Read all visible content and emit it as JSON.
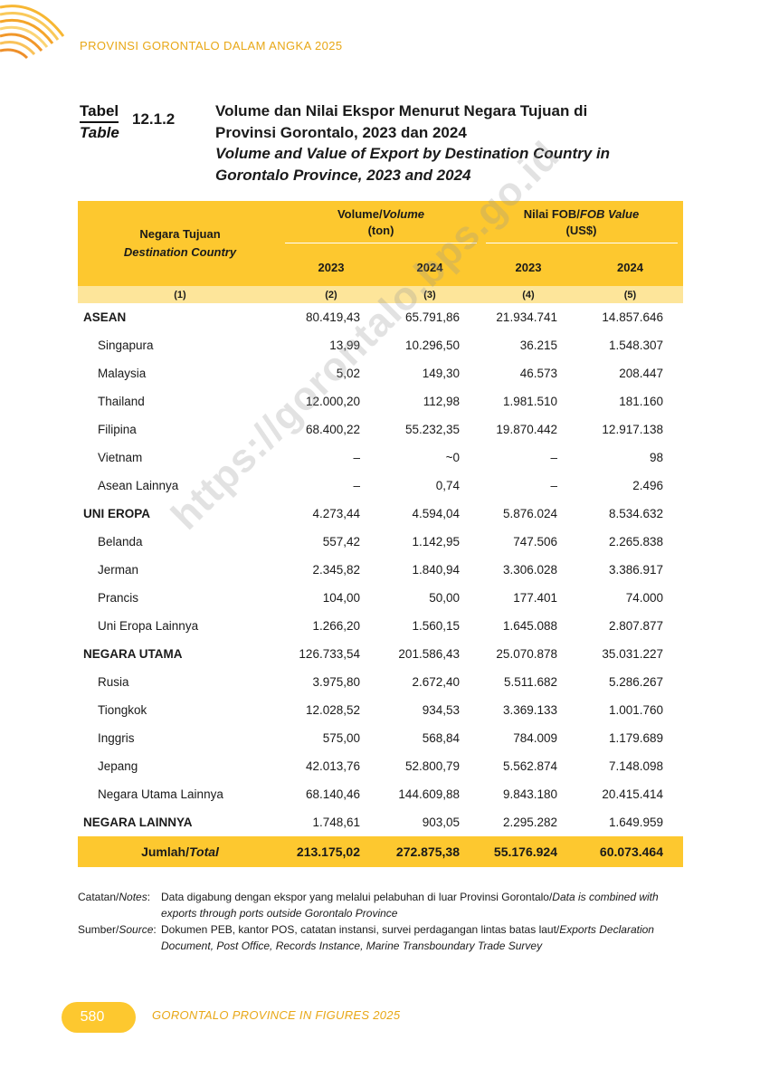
{
  "header": {
    "running_title": "PROVINSI GORONTALO DALAM ANGKA 2025"
  },
  "caption": {
    "tabel_label": "Tabel",
    "table_label": "Table",
    "number": "12.1.2",
    "title_id_1": "Volume dan Nilai Ekspor Menurut Negara Tujuan di",
    "title_id_2": "Provinsi Gorontalo, 2023 dan 2024",
    "title_en_1": "Volume and Value of Export by Destination Country in",
    "title_en_2": "Gorontalo Province, 2023 and 2024"
  },
  "table": {
    "col_country_id": "Negara Tujuan",
    "col_country_en": "Destination Country",
    "volume_id": "Volume/",
    "volume_en": "Volume",
    "volume_unit": "(ton)",
    "value_id": "Nilai FOB/",
    "value_en": "FOB Value",
    "value_unit": "(US$)",
    "year_a": "2023",
    "year_b": "2024",
    "col_numbers": [
      "(1)",
      "(2)",
      "(3)",
      "(4)",
      "(5)"
    ],
    "rows": [
      {
        "name": "ASEAN",
        "group": true,
        "vol_2023": "80.419,43",
        "vol_2024": "65.791,86",
        "fob_2023": "21.934.741",
        "fob_2024": "14.857.646"
      },
      {
        "name": "Singapura",
        "group": false,
        "vol_2023": "13,99",
        "vol_2024": "10.296,50",
        "fob_2023": "36.215",
        "fob_2024": "1.548.307"
      },
      {
        "name": "Malaysia",
        "group": false,
        "vol_2023": "5,02",
        "vol_2024": "149,30",
        "fob_2023": "46.573",
        "fob_2024": "208.447"
      },
      {
        "name": "Thailand",
        "group": false,
        "vol_2023": "12.000,20",
        "vol_2024": "112,98",
        "fob_2023": "1.981.510",
        "fob_2024": "181.160"
      },
      {
        "name": "Filipina",
        "group": false,
        "vol_2023": "68.400,22",
        "vol_2024": "55.232,35",
        "fob_2023": "19.870.442",
        "fob_2024": "12.917.138"
      },
      {
        "name": "Vietnam",
        "group": false,
        "vol_2023": "–",
        "vol_2024": "~0",
        "fob_2023": "–",
        "fob_2024": "98"
      },
      {
        "name": "Asean Lainnya",
        "group": false,
        "vol_2023": "–",
        "vol_2024": "0,74",
        "fob_2023": "–",
        "fob_2024": "2.496"
      },
      {
        "name": "UNI EROPA",
        "group": true,
        "vol_2023": "4.273,44",
        "vol_2024": "4.594,04",
        "fob_2023": "5.876.024",
        "fob_2024": "8.534.632"
      },
      {
        "name": "Belanda",
        "group": false,
        "vol_2023": "557,42",
        "vol_2024": "1.142,95",
        "fob_2023": "747.506",
        "fob_2024": "2.265.838"
      },
      {
        "name": "Jerman",
        "group": false,
        "vol_2023": "2.345,82",
        "vol_2024": "1.840,94",
        "fob_2023": "3.306.028",
        "fob_2024": "3.386.917"
      },
      {
        "name": "Prancis",
        "group": false,
        "vol_2023": "104,00",
        "vol_2024": "50,00",
        "fob_2023": "177.401",
        "fob_2024": "74.000"
      },
      {
        "name": "Uni Eropa Lainnya",
        "group": false,
        "vol_2023": "1.266,20",
        "vol_2024": "1.560,15",
        "fob_2023": "1.645.088",
        "fob_2024": "2.807.877"
      },
      {
        "name": "NEGARA UTAMA",
        "group": true,
        "vol_2023": "126.733,54",
        "vol_2024": "201.586,43",
        "fob_2023": "25.070.878",
        "fob_2024": "35.031.227"
      },
      {
        "name": "Rusia",
        "group": false,
        "vol_2023": "3.975,80",
        "vol_2024": "2.672,40",
        "fob_2023": "5.511.682",
        "fob_2024": "5.286.267"
      },
      {
        "name": "Tiongkok",
        "group": false,
        "vol_2023": "12.028,52",
        "vol_2024": "934,53",
        "fob_2023": "3.369.133",
        "fob_2024": "1.001.760"
      },
      {
        "name": "Inggris",
        "group": false,
        "vol_2023": "575,00",
        "vol_2024": "568,84",
        "fob_2023": "784.009",
        "fob_2024": "1.179.689"
      },
      {
        "name": "Jepang",
        "group": false,
        "vol_2023": "42.013,76",
        "vol_2024": "52.800,79",
        "fob_2023": "5.562.874",
        "fob_2024": "7.148.098"
      },
      {
        "name": "Negara Utama Lainnya",
        "group": false,
        "vol_2023": "68.140,46",
        "vol_2024": "144.609,88",
        "fob_2023": "9.843.180",
        "fob_2024": "20.415.414"
      },
      {
        "name": "NEGARA LAINNYA",
        "group": true,
        "vol_2023": "1.748,61",
        "vol_2024": "903,05",
        "fob_2023": "2.295.282",
        "fob_2024": "1.649.959"
      }
    ],
    "total": {
      "label_id": "Jumlah/",
      "label_en": "Total",
      "vol_2023": "213.175,02",
      "vol_2024": "272.875,38",
      "fob_2023": "55.176.924",
      "fob_2024": "60.073.464"
    }
  },
  "watermark": "https://gorontalo.bps.go.id",
  "notes": {
    "notes_label_id": "Catatan/",
    "notes_label_en": "Notes",
    "notes_text_id": "Data digabung dengan ekspor yang melalui pelabuhan di luar Provinsi Gorontalo/",
    "notes_text_en": "Data is combined with exports through ports outside Gorontalo Province",
    "source_label_id": "Sumber/",
    "source_label_en": "Source",
    "source_text_id": "Dokumen PEB, kantor POS, catatan instansi, survei perdagangan lintas batas laut/",
    "source_text_en": "Exports Declaration Document, Post Office, Records Instance, Marine Transboundary Trade Survey"
  },
  "footer": {
    "page_number": "580",
    "title": "GORONTALO PROVINCE IN FIGURES 2025"
  },
  "colors": {
    "accent": "#fdc82f",
    "accent_light": "#fde59a",
    "running_head": "#e8a716"
  }
}
